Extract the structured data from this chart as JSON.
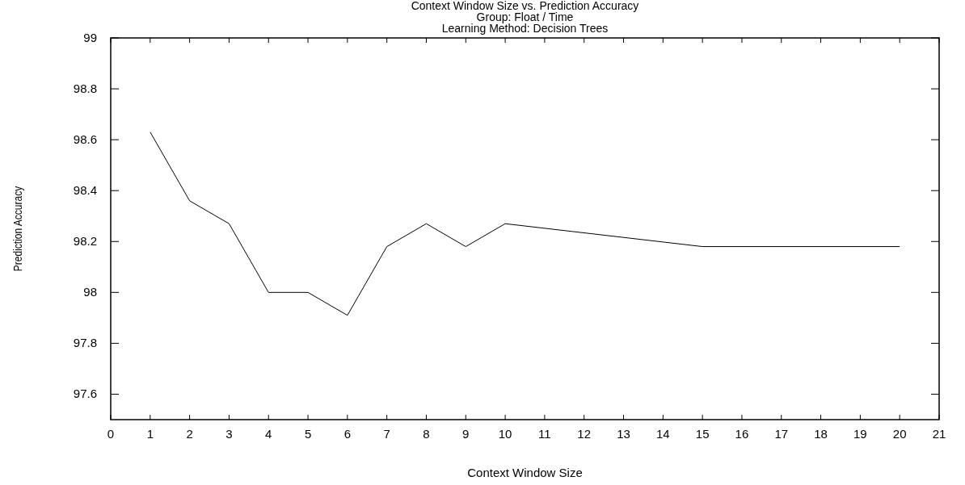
{
  "chart_data": {
    "type": "line",
    "title": "Context Window Size vs. Prediction Accuracy",
    "subtitle": "Group: Float / Time\nLearning Method: Decision Trees",
    "xlabel": "Context Window Size",
    "ylabel": "Prediction Accuracy",
    "x": [
      1,
      2,
      3,
      4,
      5,
      6,
      7,
      8,
      9,
      10,
      15,
      20
    ],
    "series": [
      {
        "color": "#000000",
        "values": [
          98.63,
          98.36,
          98.27,
          98.0,
          98.0,
          97.91,
          98.18,
          98.27,
          98.18,
          98.27,
          98.18,
          98.18
        ]
      }
    ],
    "xlim": [
      0,
      21
    ],
    "xticks": [
      0,
      1,
      2,
      3,
      4,
      5,
      6,
      7,
      8,
      9,
      10,
      11,
      12,
      13,
      14,
      15,
      16,
      17,
      18,
      19,
      20,
      21
    ],
    "ylim": [
      97.5,
      99
    ],
    "yticks": [
      97.6,
      97.8,
      98,
      98.2,
      98.4,
      98.6,
      98.8,
      99
    ],
    "grid": false,
    "marker": "none",
    "line_style": "solid"
  }
}
